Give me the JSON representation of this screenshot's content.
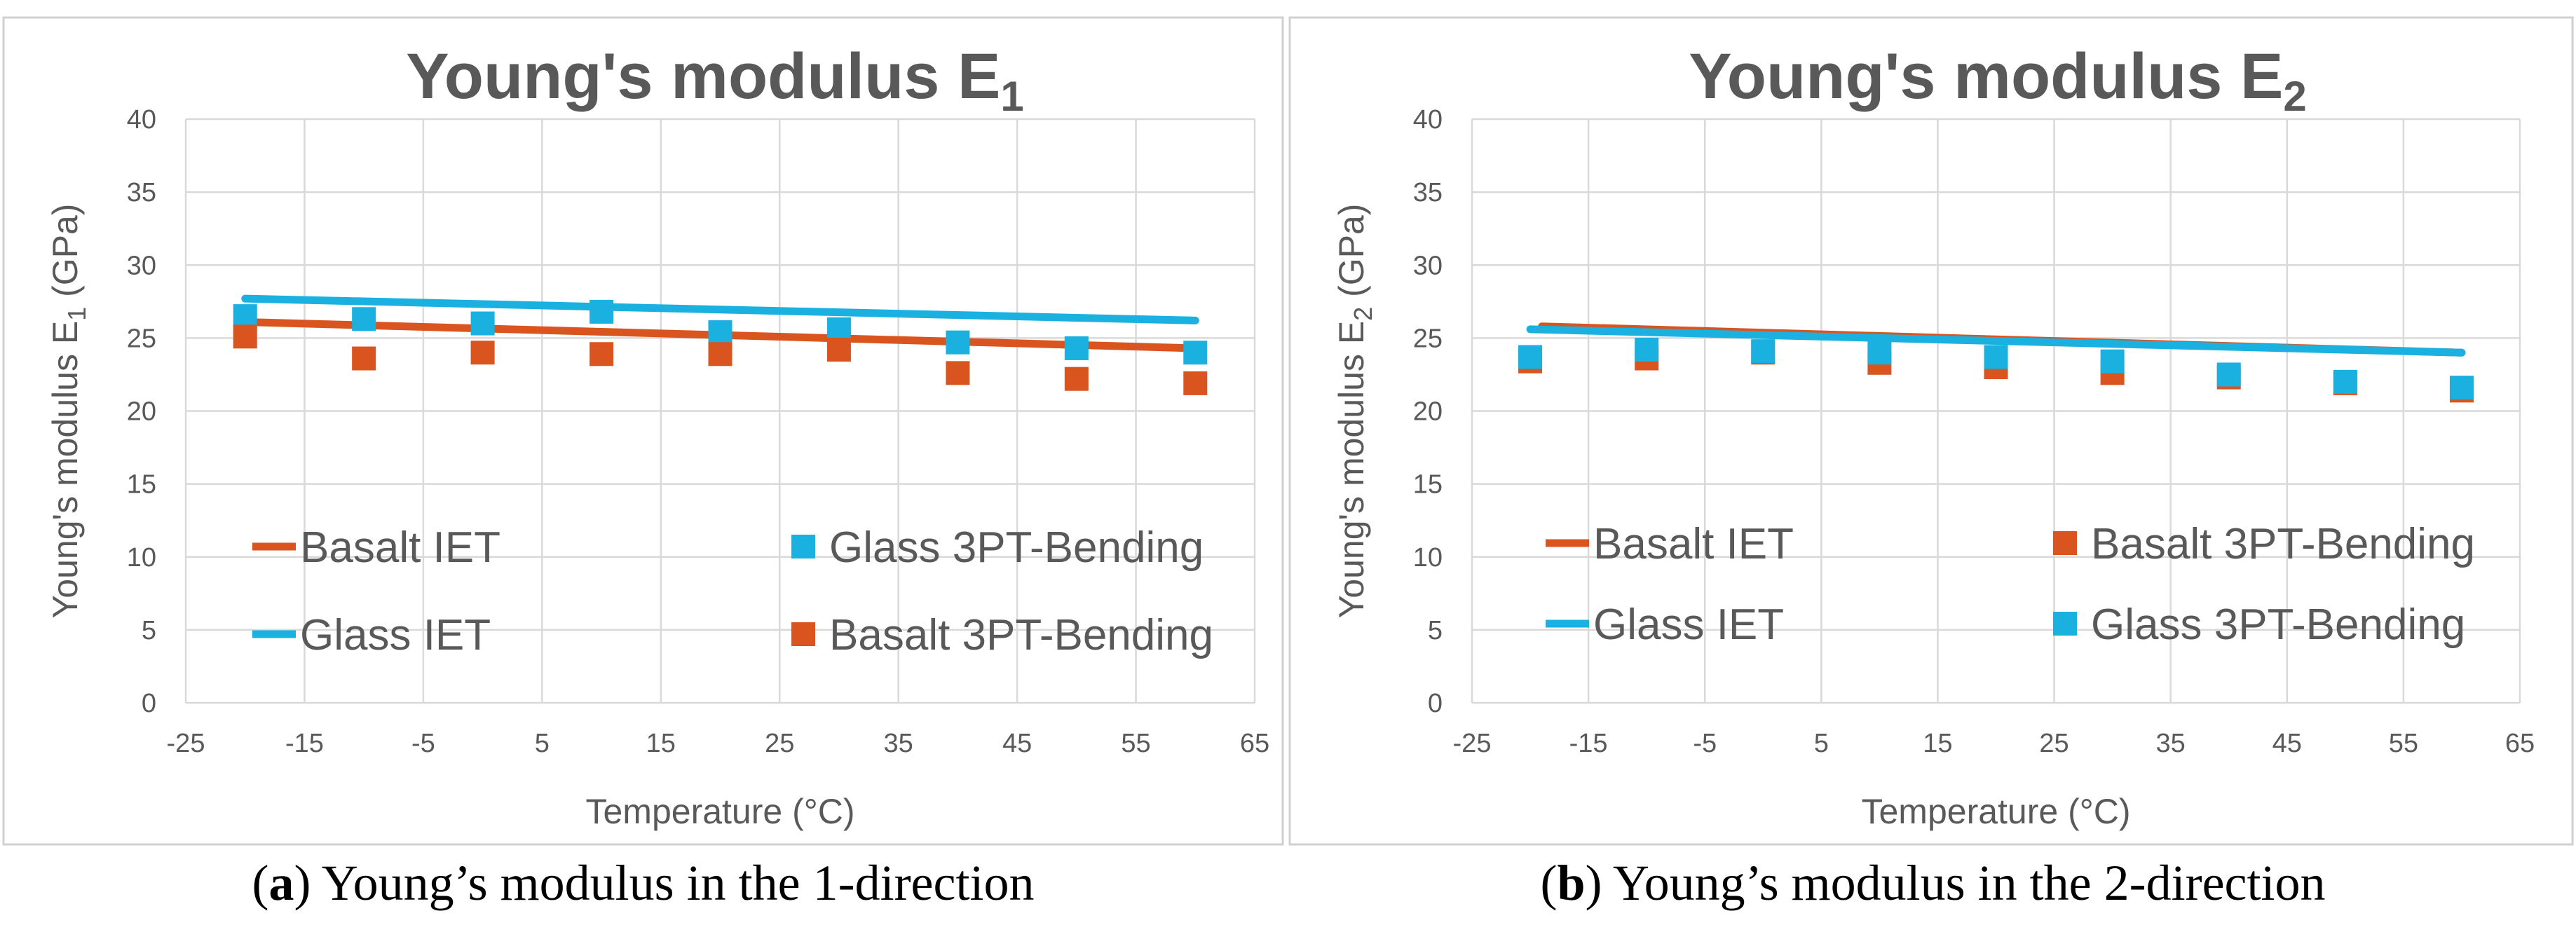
{
  "colors": {
    "basalt": "#d9541e",
    "glass": "#1ab0df",
    "panel_border": "#d0d0d0",
    "grid": "#d9d9d9",
    "axis_text": "#595959",
    "title_text": "#595959"
  },
  "captions": {
    "a": {
      "letter": "a",
      "text": "Young’s modulus in the 1-direction"
    },
    "b": {
      "letter": "b",
      "text": "Young’s modulus in the 2-direction"
    }
  },
  "chart_data": [
    {
      "id": "a",
      "type": "line",
      "title": "Young's modulus E",
      "title_sub": "1",
      "xlabel": "Temperature (°C)",
      "ylabel": "Young's modulus E",
      "ylabel_sub": "1",
      "ylabel_unit": " (GPa)",
      "xlim": [
        -25,
        65
      ],
      "ylim": [
        0,
        40
      ],
      "xticks": [
        -25,
        -15,
        -5,
        5,
        15,
        25,
        35,
        45,
        55,
        65
      ],
      "yticks": [
        0,
        5,
        10,
        15,
        20,
        25,
        30,
        35,
        40
      ],
      "series": [
        {
          "name": "Basalt IET",
          "kind": "line",
          "color_key": "basalt",
          "x": [
            -20,
            60
          ],
          "y": [
            26.1,
            24.3
          ]
        },
        {
          "name": "Glass IET",
          "kind": "line",
          "color_key": "glass",
          "x": [
            -20,
            60
          ],
          "y": [
            27.7,
            26.2
          ]
        },
        {
          "name": "Glass 3PT-Bending",
          "kind": "marker",
          "color_key": "glass",
          "x": [
            -20,
            -10,
            0,
            10,
            20,
            30,
            40,
            50,
            60
          ],
          "y": [
            26.5,
            26.3,
            26.0,
            26.8,
            25.4,
            25.6,
            24.7,
            24.3,
            24.0
          ]
        },
        {
          "name": "Basalt 3PT-Bending",
          "kind": "marker",
          "color_key": "basalt",
          "x": [
            -20,
            -10,
            0,
            10,
            20,
            30,
            40,
            50,
            60
          ],
          "y": [
            25.1,
            23.6,
            24.0,
            23.9,
            23.9,
            24.2,
            22.6,
            22.2,
            21.9
          ]
        }
      ],
      "legend_order": [
        0,
        2,
        1,
        3
      ]
    },
    {
      "id": "b",
      "type": "line",
      "title": "Young's modulus E",
      "title_sub": "2",
      "xlabel": "Temperature (°C)",
      "ylabel": "Young's modulus E",
      "ylabel_sub": "2",
      "ylabel_unit": " (GPa)",
      "xlim": [
        -25,
        65
      ],
      "ylim": [
        0,
        40
      ],
      "xticks": [
        -25,
        -15,
        -5,
        5,
        15,
        25,
        35,
        45,
        55,
        65
      ],
      "yticks": [
        0,
        5,
        10,
        15,
        20,
        25,
        30,
        35,
        40
      ],
      "series": [
        {
          "name": "Basalt IET",
          "kind": "line",
          "color_key": "basalt",
          "x": [
            -19,
            60
          ],
          "y": [
            25.8,
            24.0
          ]
        },
        {
          "name": "Glass IET",
          "kind": "line",
          "color_key": "glass",
          "x": [
            -20,
            60
          ],
          "y": [
            25.6,
            24.0
          ]
        },
        {
          "name": "Basalt 3PT-Bending",
          "kind": "marker",
          "color_key": "basalt",
          "x": [
            -20,
            -10,
            0,
            10,
            20,
            30,
            40,
            50,
            60
          ],
          "y": [
            23.4,
            23.6,
            24.0,
            23.3,
            23.0,
            22.6,
            22.3,
            21.9,
            21.4
          ]
        },
        {
          "name": "Glass 3PT-Bending",
          "kind": "marker",
          "color_key": "glass",
          "x": [
            -20,
            -10,
            0,
            10,
            20,
            30,
            40,
            50,
            60
          ],
          "y": [
            23.7,
            24.2,
            24.1,
            24.0,
            23.7,
            23.4,
            22.5,
            22.0,
            21.6
          ]
        }
      ],
      "legend_order": [
        0,
        2,
        1,
        3
      ]
    }
  ]
}
